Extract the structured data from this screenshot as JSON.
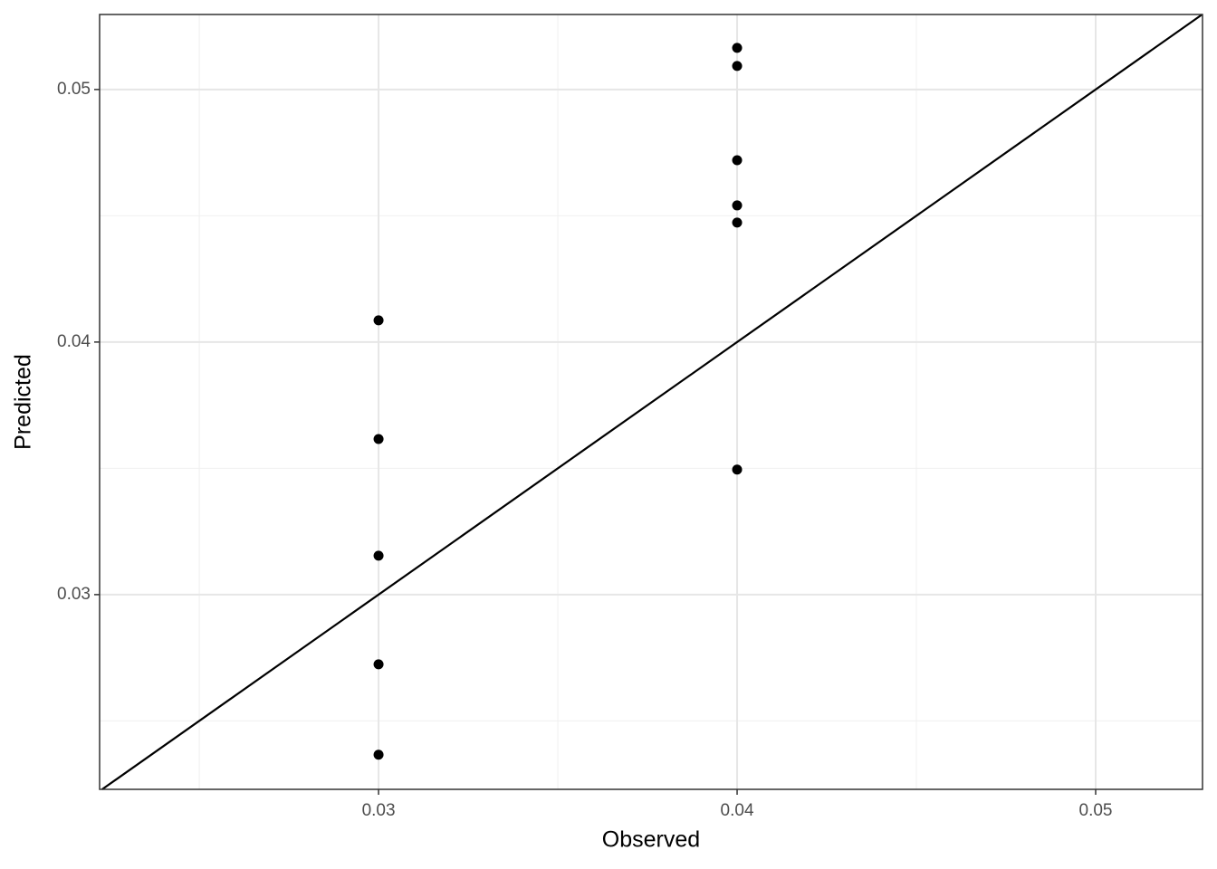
{
  "chart_data": {
    "type": "scatter",
    "x_label": "Observed",
    "y_label": "Predicted",
    "series": [
      {
        "color": "#000000",
        "x": [
          0.03,
          0.03,
          0.03,
          0.03,
          0.03,
          0.04,
          0.04,
          0.04,
          0.04,
          0.04,
          0.04
        ],
        "values": [
          0.04086,
          0.03616,
          0.03154,
          0.02724,
          0.02366,
          0.05165,
          0.05093,
          0.0472,
          0.04541,
          0.04473,
          0.03495
        ]
      }
    ],
    "xlim": [
      0.02222,
      0.05298
    ],
    "ylim": [
      0.02229,
      0.05297
    ],
    "xticks": [
      0.03,
      0.04,
      0.05
    ],
    "yticks": [
      0.03,
      0.04,
      0.05
    ],
    "minor_xticks": [
      0.025,
      0.035,
      0.045
    ],
    "minor_yticks": [
      0.025,
      0.035,
      0.045
    ],
    "grid": true,
    "identity_line": true
  }
}
